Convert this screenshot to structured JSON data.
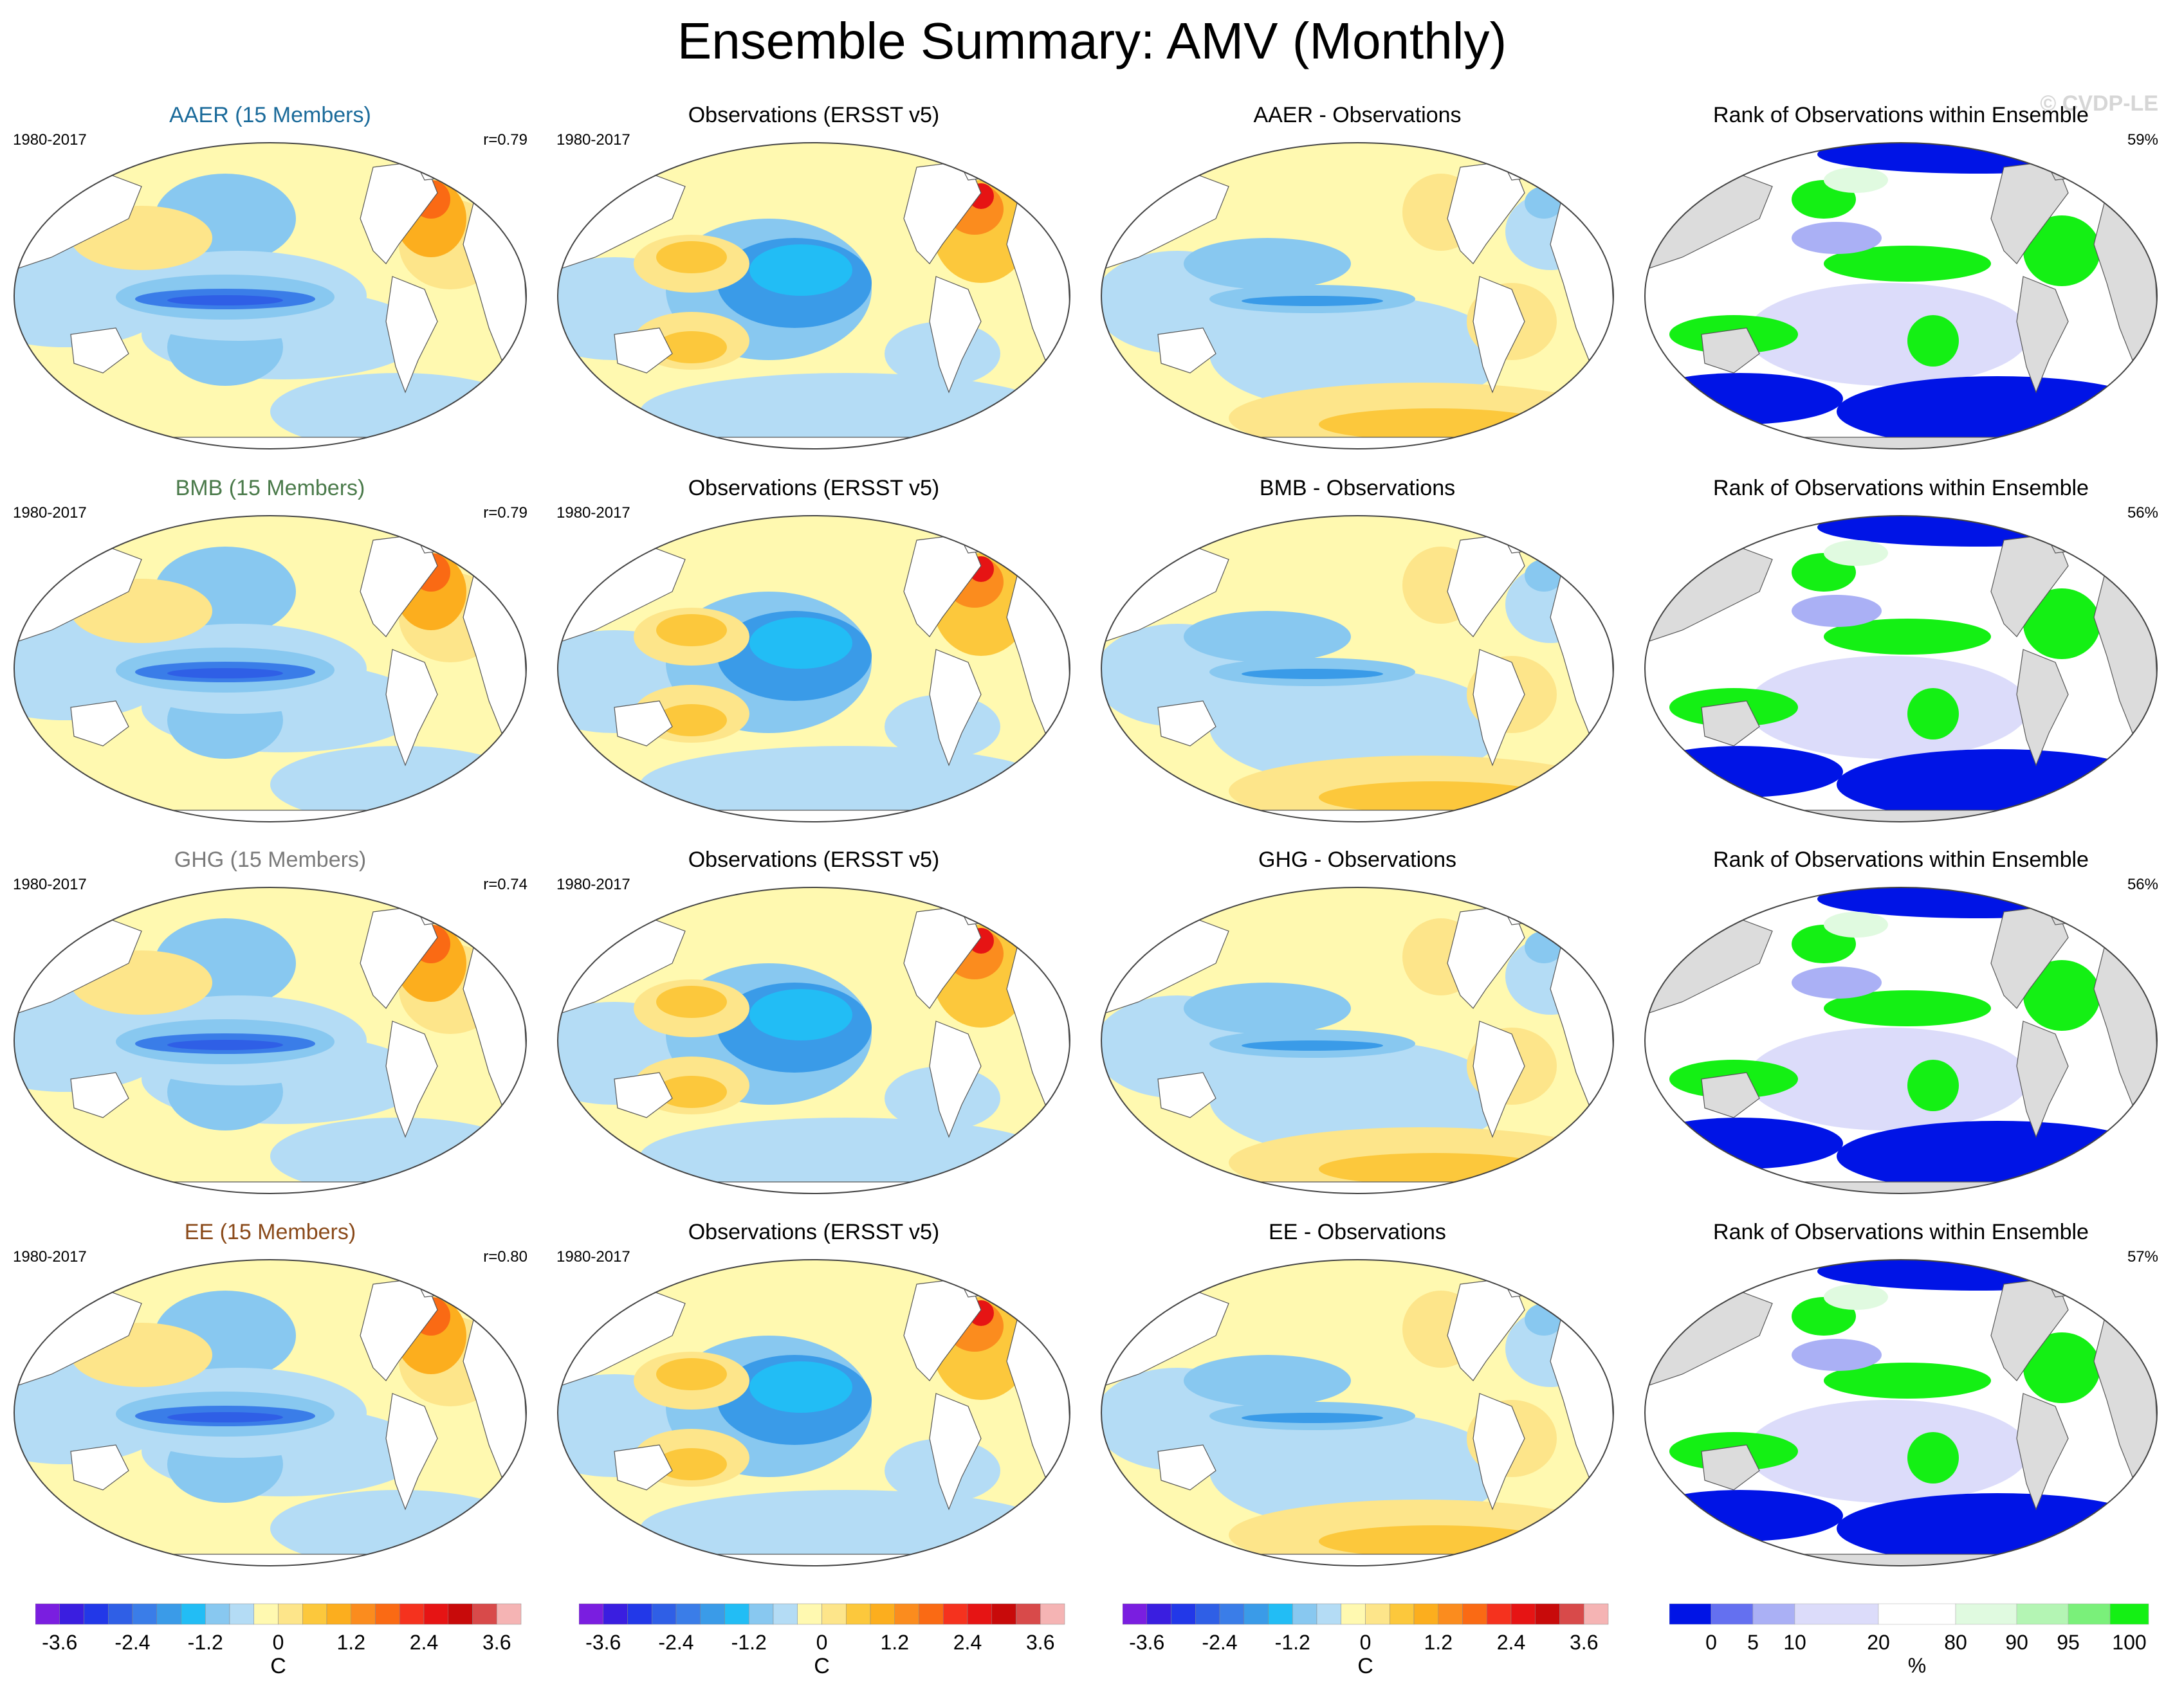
{
  "title": "Ensemble Summary: AMV (Monthly)",
  "watermark": "© CVDP-LE",
  "colors": {
    "aer_title": "#1a6a9a",
    "bmb_title": "#4a7a4a",
    "ghg_title": "#7a7a7a",
    "ee_title": "#8a4a1a",
    "land": "#dcdcdc",
    "ocean_bg": "#ffffff"
  },
  "rows": [
    {
      "model_title": "AAER (15 Members)",
      "model_period": "1980-2017",
      "model_r": "r=0.79",
      "obs_title": "Observations (ERSST v5)",
      "obs_period": "1980-2017",
      "diff_title": "AAER - Observations",
      "rank_title": "Rank of Observations within Ensemble",
      "rank_pct": "59%"
    },
    {
      "model_title": "BMB (15 Members)",
      "model_period": "1980-2017",
      "model_r": "r=0.79",
      "obs_title": "Observations (ERSST v5)",
      "obs_period": "1980-2017",
      "diff_title": "BMB - Observations",
      "rank_title": "Rank of Observations within Ensemble",
      "rank_pct": "56%"
    },
    {
      "model_title": "GHG (15 Members)",
      "model_period": "1980-2017",
      "model_r": "r=0.74",
      "obs_title": "Observations (ERSST v5)",
      "obs_period": "1980-2017",
      "diff_title": "GHG - Observations",
      "rank_title": "Rank of Observations within Ensemble",
      "rank_pct": "56%"
    },
    {
      "model_title": "EE (15 Members)",
      "model_period": "1980-2017",
      "model_r": "r=0.80",
      "obs_title": "Observations (ERSST v5)",
      "obs_period": "1980-2017",
      "diff_title": "EE - Observations",
      "rank_title": "Rank of Observations within Ensemble",
      "rank_pct": "57%"
    }
  ],
  "colorbar_temp": {
    "ticks": [
      "-3.6",
      "-2.4",
      "-1.2",
      "0",
      "1.2",
      "2.4",
      "3.6"
    ],
    "unit": "C",
    "colors": [
      "#7a1ee0",
      "#3a1ee0",
      "#2238e8",
      "#2f5fe6",
      "#3a7de8",
      "#3a9be8",
      "#22bdf5",
      "#88c8f0",
      "#b4dcf5",
      "#fff9b0",
      "#fde58a",
      "#fcc83c",
      "#fcae1e",
      "#fb8c1e",
      "#fa6a14",
      "#f5321e",
      "#e61414",
      "#c80a0a",
      "#d84a4a",
      "#f5b4b4"
    ]
  },
  "colorbar_rank": {
    "ticks": [
      "0",
      "5",
      "10",
      "20",
      "%",
      "80",
      "90",
      "95",
      "100"
    ],
    "colors": [
      "#0014e6",
      "#6470f0",
      "#aab0f5",
      "#dcdcfa",
      "#ffffff",
      "#e0fae0",
      "#b4f5b4",
      "#7af07a",
      "#14f014"
    ]
  }
}
